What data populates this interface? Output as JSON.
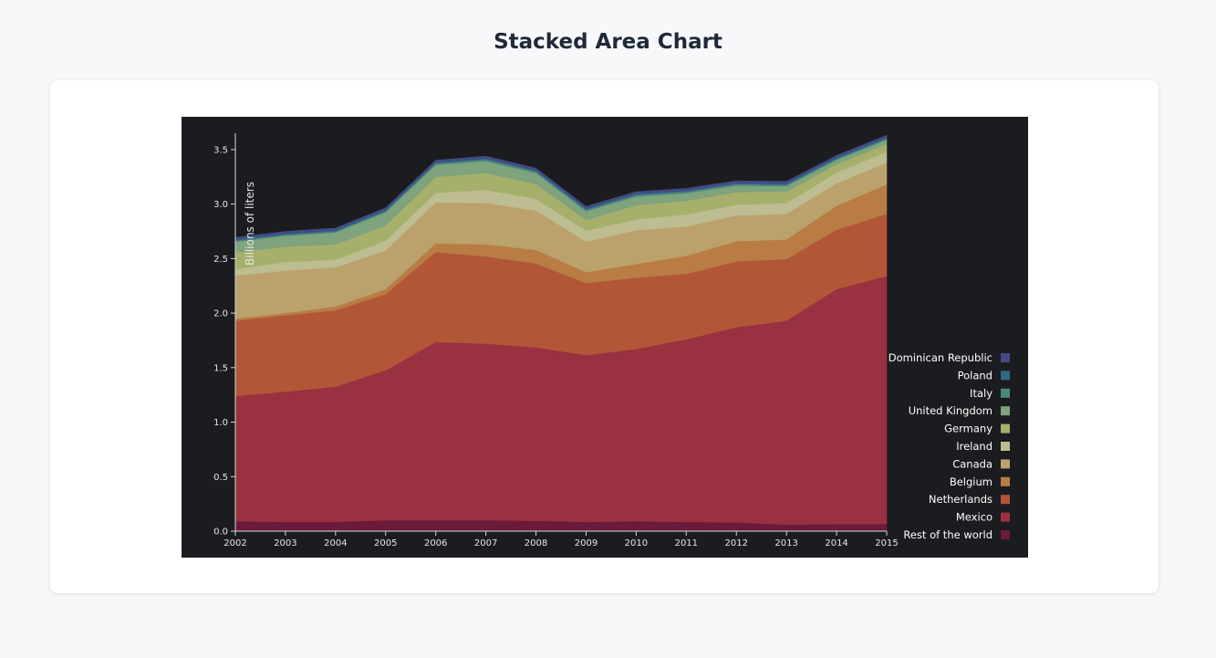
{
  "page": {
    "title": "Stacked Area Chart"
  },
  "chart_data": {
    "type": "area",
    "title": "Stacked Area Chart",
    "ylabel": "Billions of liters",
    "xlabel": "",
    "x": [
      2002,
      2003,
      2004,
      2005,
      2006,
      2007,
      2008,
      2009,
      2010,
      2011,
      2012,
      2013,
      2014,
      2015
    ],
    "ylim": [
      0,
      3.65
    ],
    "yticks": [
      "0.0",
      "0.5",
      "1.0",
      "1.5",
      "2.0",
      "2.5",
      "3.0",
      "3.5"
    ],
    "ytick_values": [
      0,
      0.5,
      1.0,
      1.5,
      2.0,
      2.5,
      3.0,
      3.5
    ],
    "xticks": [
      "2002",
      "2003",
      "2004",
      "2005",
      "2006",
      "2007",
      "2008",
      "2009",
      "2010",
      "2011",
      "2012",
      "2013",
      "2014",
      "2015"
    ],
    "legend_position": "bottom-right",
    "series": [
      {
        "name": "Rest of the world",
        "color": "#6b1a3a",
        "values": [
          0.09,
          0.085,
          0.085,
          0.1,
          0.1,
          0.1,
          0.095,
          0.085,
          0.09,
          0.085,
          0.08,
          0.06,
          0.065,
          0.065
        ]
      },
      {
        "name": "Mexico",
        "color": "#993140",
        "values": [
          1.15,
          1.195,
          1.24,
          1.375,
          1.635,
          1.62,
          1.59,
          1.53,
          1.58,
          1.675,
          1.79,
          1.87,
          2.155,
          2.275
        ]
      },
      {
        "name": "Netherlands",
        "color": "#b25638",
        "values": [
          0.69,
          0.7,
          0.7,
          0.7,
          0.825,
          0.8,
          0.77,
          0.66,
          0.655,
          0.6,
          0.605,
          0.565,
          0.545,
          0.57
        ]
      },
      {
        "name": "Belgium",
        "color": "#b97c45",
        "values": [
          0.02,
          0.02,
          0.035,
          0.045,
          0.08,
          0.11,
          0.125,
          0.1,
          0.125,
          0.165,
          0.185,
          0.18,
          0.22,
          0.27
        ]
      },
      {
        "name": "Canada",
        "color": "#bba16c",
        "values": [
          0.395,
          0.39,
          0.36,
          0.355,
          0.375,
          0.38,
          0.36,
          0.28,
          0.31,
          0.27,
          0.235,
          0.235,
          0.205,
          0.2
        ]
      },
      {
        "name": "Ireland",
        "color": "#bdbd91",
        "values": [
          0.06,
          0.08,
          0.07,
          0.09,
          0.09,
          0.12,
          0.11,
          0.1,
          0.1,
          0.11,
          0.1,
          0.1,
          0.1,
          0.1
        ]
      },
      {
        "name": "Germany",
        "color": "#a6b06a",
        "values": [
          0.15,
          0.14,
          0.14,
          0.14,
          0.145,
          0.155,
          0.135,
          0.1,
          0.13,
          0.125,
          0.115,
          0.105,
          0.075,
          0.07
        ]
      },
      {
        "name": "United Kingdom",
        "color": "#7ea37d",
        "values": [
          0.1,
          0.1,
          0.11,
          0.12,
          0.11,
          0.11,
          0.1,
          0.08,
          0.08,
          0.07,
          0.06,
          0.05,
          0.04,
          0.04
        ]
      },
      {
        "name": "Italy",
        "color": "#4a8a7a",
        "values": [
          0.01,
          0.01,
          0.01,
          0.012,
          0.013,
          0.015,
          0.015,
          0.014,
          0.014,
          0.014,
          0.014,
          0.013,
          0.012,
          0.012
        ]
      },
      {
        "name": "Poland",
        "color": "#2e6a86",
        "values": [
          0.01,
          0.01,
          0.01,
          0.01,
          0.01,
          0.01,
          0.01,
          0.01,
          0.01,
          0.01,
          0.01,
          0.01,
          0.01,
          0.01
        ]
      },
      {
        "name": "Dominican Republic",
        "color": "#454a87",
        "values": [
          0.02,
          0.02,
          0.02,
          0.02,
          0.02,
          0.02,
          0.02,
          0.02,
          0.02,
          0.02,
          0.02,
          0.02,
          0.02,
          0.02
        ]
      }
    ]
  }
}
